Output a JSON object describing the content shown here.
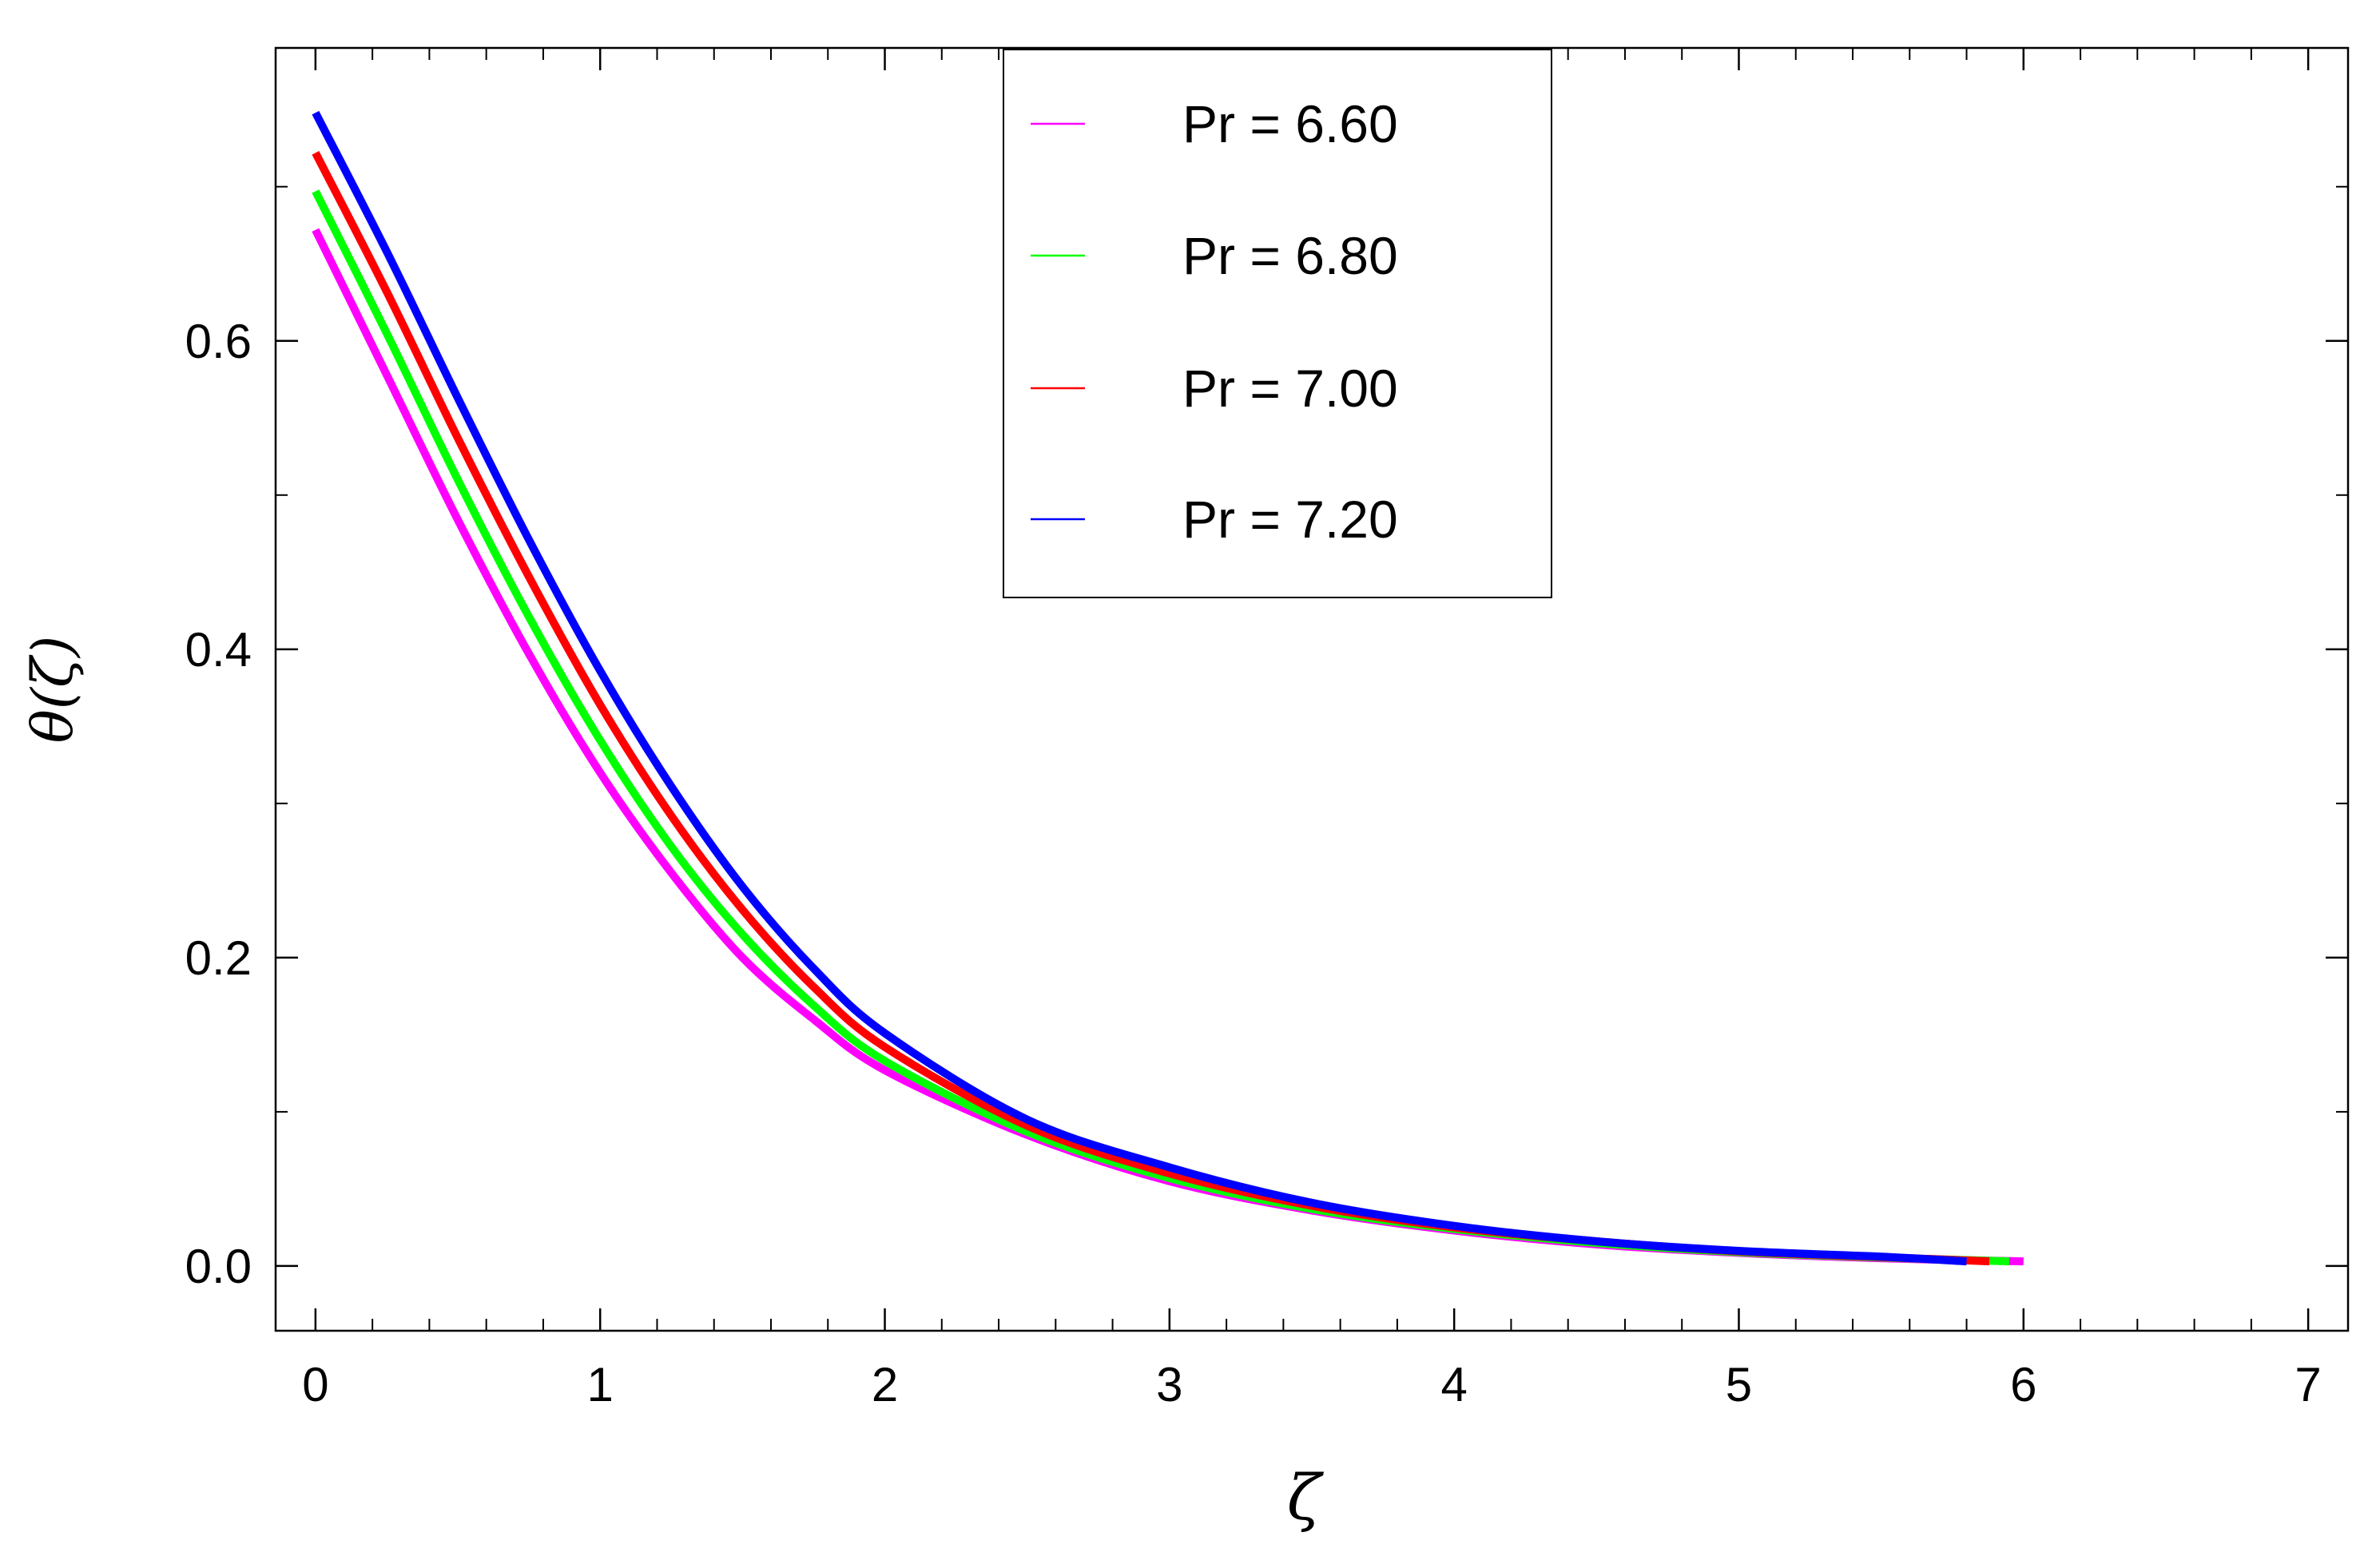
{
  "chart_data": {
    "type": "line",
    "title": "",
    "xlabel": "ζ",
    "ylabel": "θ(ζ)",
    "xlim": [
      -0.14,
      7.14
    ],
    "ylim": [
      -0.042,
      0.79
    ],
    "xticks": [
      0,
      1,
      2,
      3,
      4,
      5,
      6,
      7
    ],
    "xtick_labels": [
      "0",
      "1",
      "2",
      "3",
      "4",
      "5",
      "6",
      "7"
    ],
    "yticks": [
      0.0,
      0.2,
      0.4,
      0.6
    ],
    "ytick_labels": [
      "0.0",
      "0.2",
      "0.4",
      "0.6"
    ],
    "grid": false,
    "legend_position": "top-center",
    "series": [
      {
        "name": "Pr = 6.60",
        "color": "#ff00ff",
        "x": [
          0,
          0.25,
          0.5,
          0.75,
          1.0,
          1.25,
          1.5,
          1.75,
          2.0,
          2.5,
          3.0,
          3.5,
          4.0,
          4.5,
          5.0,
          5.5,
          6.0
        ],
        "y": [
          0.672,
          0.578,
          0.484,
          0.397,
          0.32,
          0.255,
          0.2,
          0.16,
          0.127,
          0.085,
          0.055,
          0.036,
          0.023,
          0.014,
          0.0085,
          0.005,
          0.003
        ]
      },
      {
        "name": "Pr = 6.80",
        "color": "#00ff00",
        "x": [
          0,
          0.25,
          0.5,
          0.75,
          1.0,
          1.25,
          1.5,
          1.75,
          2.0,
          2.5,
          3.0,
          3.5,
          4.0,
          4.5,
          5.0,
          5.5,
          5.95
        ],
        "y": [
          0.697,
          0.605,
          0.51,
          0.421,
          0.341,
          0.272,
          0.215,
          0.169,
          0.133,
          0.087,
          0.057,
          0.037,
          0.024,
          0.015,
          0.009,
          0.0055,
          0.003
        ]
      },
      {
        "name": "Pr = 7.00",
        "color": "#ff0000",
        "x": [
          0,
          0.25,
          0.5,
          0.75,
          1.0,
          1.25,
          1.5,
          1.75,
          2.0,
          2.5,
          3.0,
          3.5,
          4.0,
          4.5,
          5.0,
          5.5,
          5.88
        ],
        "y": [
          0.722,
          0.632,
          0.537,
          0.447,
          0.364,
          0.292,
          0.231,
          0.181,
          0.142,
          0.091,
          0.06,
          0.039,
          0.025,
          0.016,
          0.0095,
          0.0058,
          0.003
        ]
      },
      {
        "name": "Pr = 7.20",
        "color": "#0000ff",
        "x": [
          0,
          0.25,
          0.5,
          0.75,
          1.0,
          1.25,
          1.5,
          1.75,
          2.0,
          2.5,
          3.0,
          3.5,
          4.0,
          4.5,
          5.0,
          5.5,
          5.8
        ],
        "y": [
          0.748,
          0.658,
          0.563,
          0.471,
          0.386,
          0.311,
          0.246,
          0.193,
          0.151,
          0.095,
          0.064,
          0.041,
          0.026,
          0.016,
          0.0098,
          0.006,
          0.003
        ]
      }
    ]
  }
}
